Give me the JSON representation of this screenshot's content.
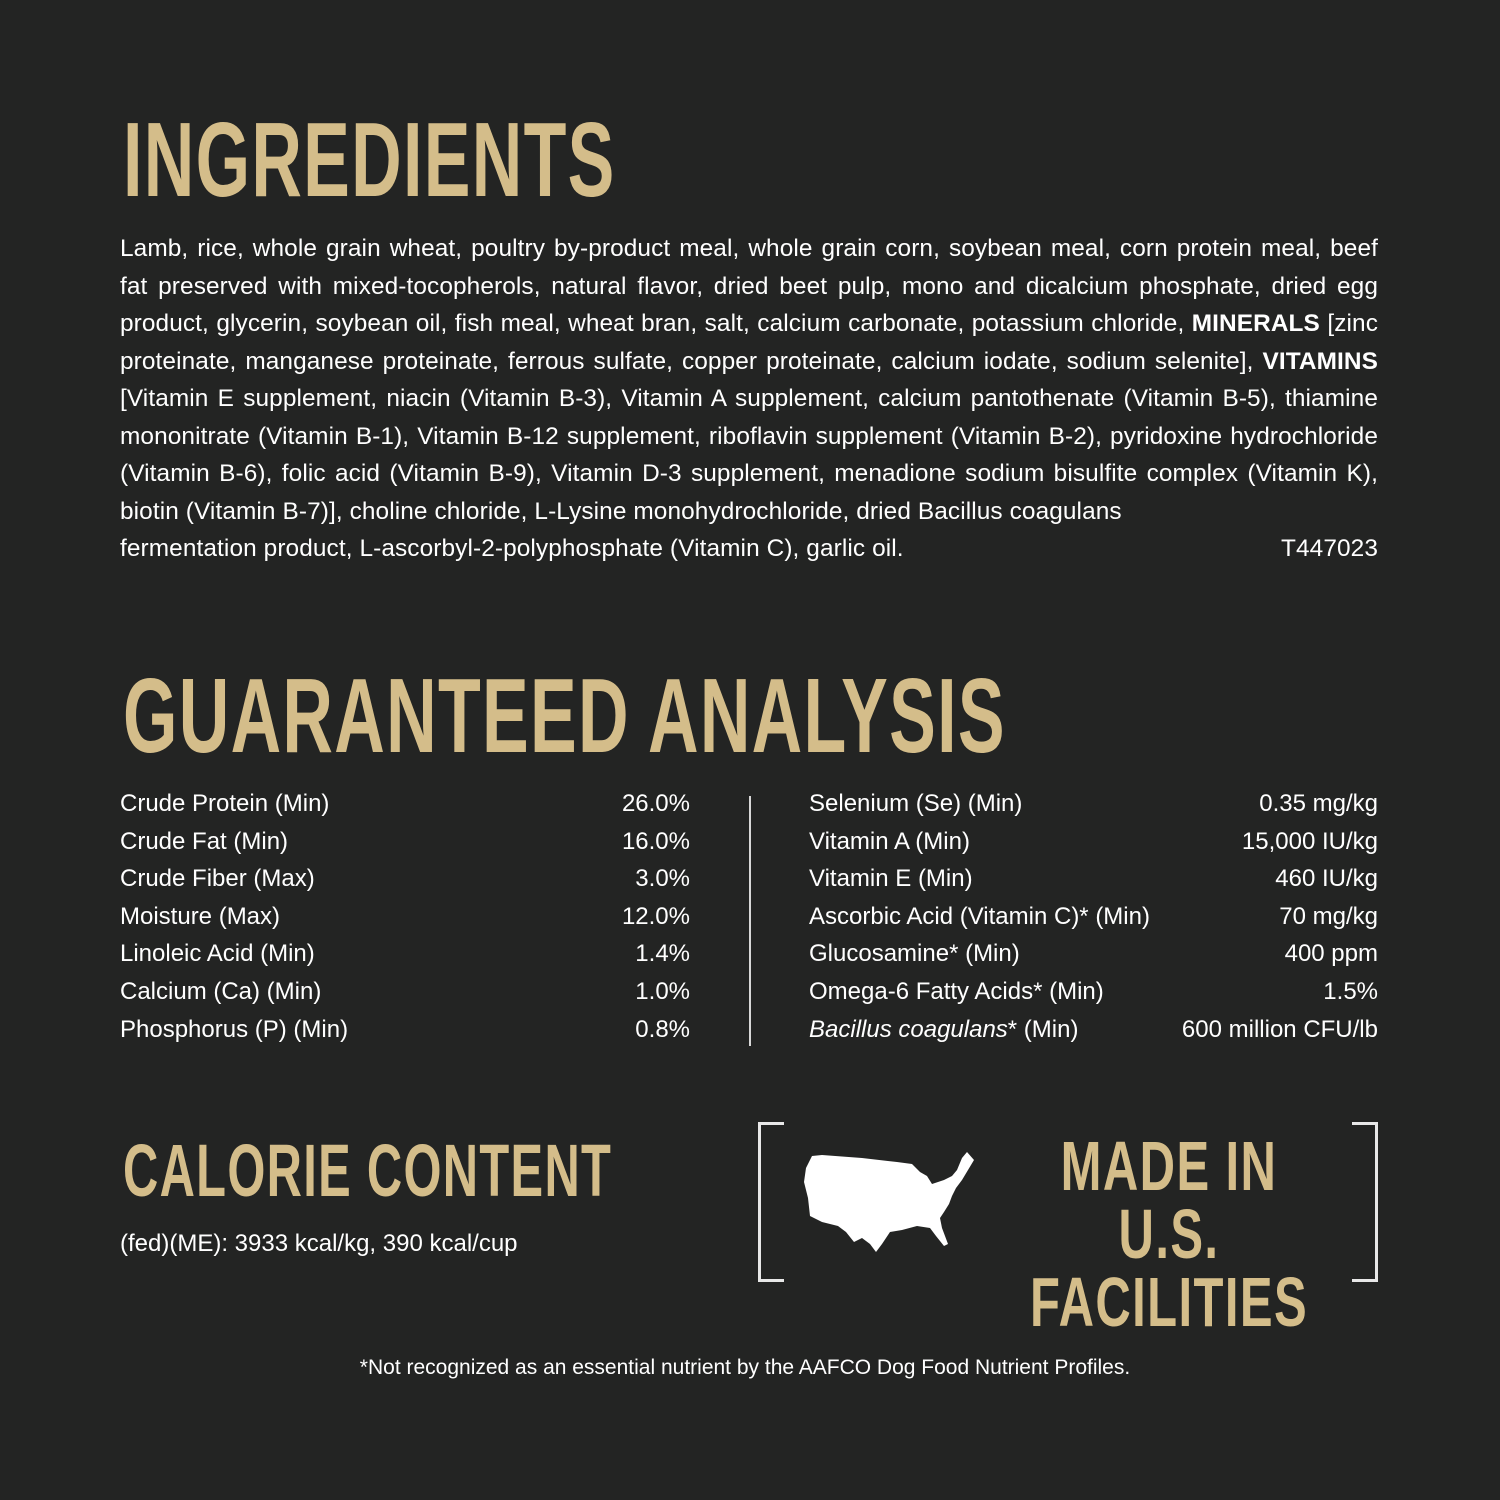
{
  "ingredients": {
    "title": "INGREDIENTS",
    "text_1": "Lamb, rice, whole grain wheat, poultry by-product meal, whole grain corn, soybean meal, corn protein meal, beef fat preserved with mixed-tocopherols, natural flavor, dried beet pulp, mono and dicalcium phosphate, dried egg product, glycerin, soybean oil, fish meal, wheat bran, salt, calcium carbonate, potassium chloride, ",
    "minerals_label": "MINERALS",
    "text_2": " [zinc proteinate, manganese proteinate, ferrous sulfate, copper proteinate, calcium iodate, sodium selenite], ",
    "vitamins_label": "VITAMINS",
    "text_3": " [Vitamin E supplement, niacin (Vitamin B-3), Vitamin A supplement, calcium pantothenate (Vitamin B-5), thiamine mononitrate (Vitamin B-1), Vitamin B-12 supplement, riboflavin supplement (Vitamin B-2), pyridoxine hydrochloride (Vitamin B-6), folic acid (Vitamin B-9), Vitamin D-3 supplement, menadione sodium bisulfite complex (Vitamin K), biotin (Vitamin B-7)], choline chloride, L-Lysine monohydrochloride, dried Bacillus coagulans",
    "last_line": "fermentation product, L-ascorbyl-2-polyphosphate (Vitamin C), garlic oil.",
    "code": "T447023"
  },
  "analysis": {
    "title": "GUARANTEED ANALYSIS",
    "left": [
      {
        "label": "Crude Protein (Min)",
        "value": "26.0%"
      },
      {
        "label": "Crude Fat (Min)",
        "value": "16.0%"
      },
      {
        "label": "Crude Fiber (Max)",
        "value": "3.0%"
      },
      {
        "label": "Moisture (Max)",
        "value": "12.0%"
      },
      {
        "label": "Linoleic Acid (Min)",
        "value": "1.4%"
      },
      {
        "label": "Calcium (Ca) (Min)",
        "value": "1.0%"
      },
      {
        "label": "Phosphorus (P) (Min)",
        "value": "0.8%"
      }
    ],
    "right": [
      {
        "label": "Selenium (Se) (Min)",
        "value": "0.35 mg/kg"
      },
      {
        "label": "Vitamin A (Min)",
        "value": "15,000 IU/kg"
      },
      {
        "label": "Vitamin E (Min)",
        "value": "460 IU/kg"
      },
      {
        "label": "Ascorbic Acid (Vitamin C)* (Min)",
        "value": "70 mg/kg"
      },
      {
        "label": "Glucosamine* (Min)",
        "value": "400 ppm"
      },
      {
        "label": "Omega-6 Fatty Acids* (Min)",
        "value": "1.5%"
      },
      {
        "label_italic": "Bacillus coagulans",
        "label": "* (Min)",
        "value": "600 million CFU/lb"
      }
    ]
  },
  "calorie": {
    "title": "CALORIE CONTENT",
    "text": "(fed)(ME): 3933 kcal/kg, 390 kcal/cup"
  },
  "badge": {
    "icon": "usa-map-icon",
    "line1": "MADE IN U.S.",
    "line2": "FACILITIES"
  },
  "footnote": "*Not recognized as an essential nutrient by the AAFCO Dog Food Nutrient Profiles.",
  "colors": {
    "background": "#232423",
    "accent": "#d4bd8a",
    "text": "#ffffff"
  }
}
